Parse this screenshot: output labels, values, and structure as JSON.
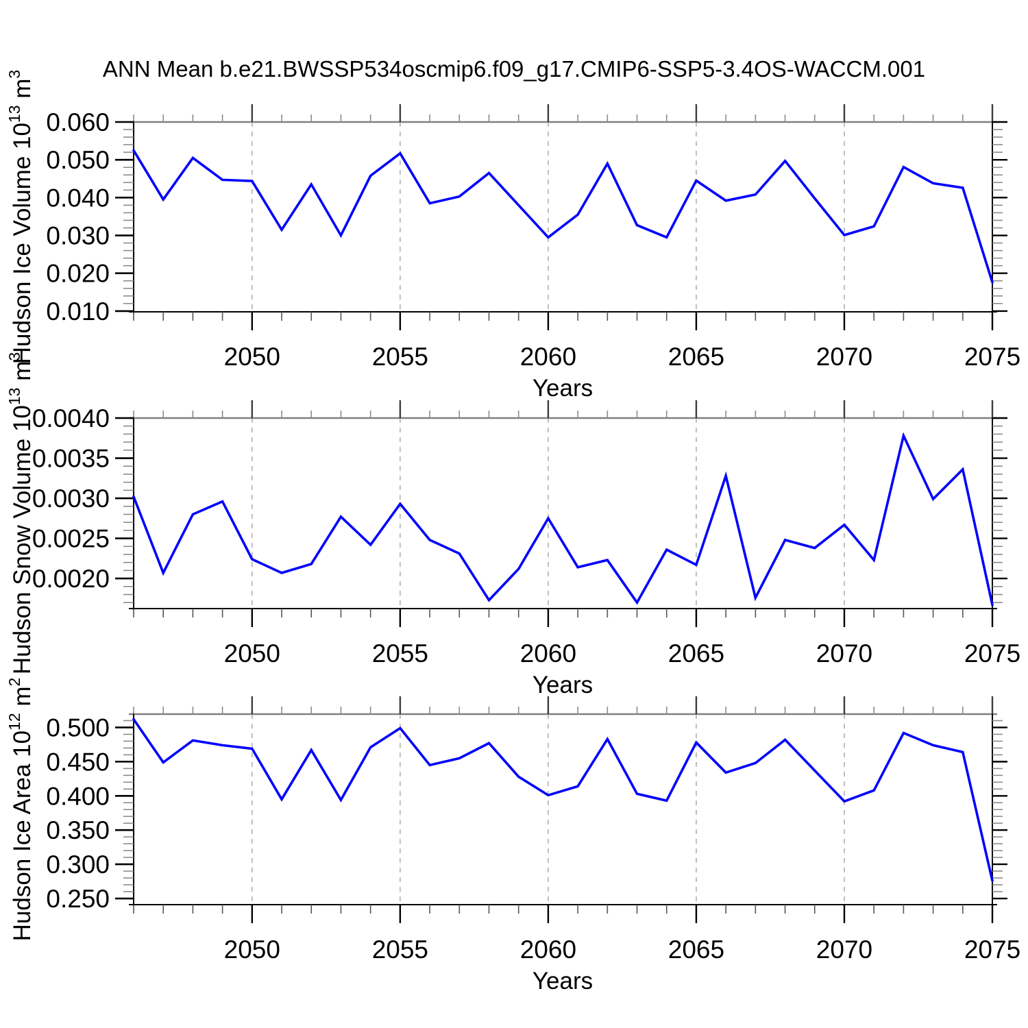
{
  "title": "ANN Mean b.e21.BWSSP534oscmip6.f09_g17.CMIP6-SSP5-3.4OS-WACCM.001",
  "colors": {
    "line": "#0000ff",
    "frame": "#000000",
    "frame_top": "#808080",
    "grid": "#b0b0b0",
    "tick_major": "#000000",
    "tick_minor": "#8c8c8c",
    "text": "#000000",
    "background": "#ffffff"
  },
  "x_axis": {
    "label": "Years",
    "start": 2046,
    "end": 2075,
    "minor_step": 1,
    "major_ticks": [
      2050,
      2055,
      2060,
      2065,
      2070,
      2075
    ],
    "major_tick_labels": [
      "2050",
      "2055",
      "2060",
      "2065",
      "2070",
      "2075"
    ],
    "grid_years": [
      2050,
      2055,
      2060,
      2065,
      2070
    ]
  },
  "chart_data": [
    {
      "type": "line",
      "name": "hudson-ice-volume",
      "ylabel_parts": {
        "main1": "Hudson Ice Volume 10",
        "sup1": "13",
        "main2": " m",
        "sup2": "3"
      },
      "xlabel": "Years",
      "legend": "none",
      "grid": "vertical-dashed",
      "x": [
        2046,
        2047,
        2048,
        2049,
        2050,
        2051,
        2052,
        2053,
        2054,
        2055,
        2056,
        2057,
        2058,
        2059,
        2060,
        2061,
        2062,
        2063,
        2064,
        2065,
        2066,
        2067,
        2068,
        2069,
        2070,
        2071,
        2072,
        2073,
        2074,
        2075
      ],
      "values": [
        0.0525,
        0.0395,
        0.0505,
        0.0447,
        0.0444,
        0.0315,
        0.0435,
        0.03,
        0.0458,
        0.0517,
        0.0385,
        0.0403,
        0.0465,
        0.038,
        0.0295,
        0.0355,
        0.049,
        0.0327,
        0.0295,
        0.0445,
        0.0392,
        0.0408,
        0.0497,
        0.0398,
        0.0301,
        0.0324,
        0.0481,
        0.0438,
        0.0426,
        0.0176
      ],
      "ylim": [
        0.0098,
        0.06
      ],
      "yticks_major": [
        0.01,
        0.02,
        0.03,
        0.04,
        0.05,
        0.06
      ],
      "ytick_labels": [
        "0.010",
        "0.020",
        "0.030",
        "0.040",
        "0.050",
        "0.060"
      ],
      "ytick_minor_step": 0.002
    },
    {
      "type": "line",
      "name": "hudson-snow-volume",
      "ylabel_parts": {
        "main1": "Hudson Snow Volume 10",
        "sup1": "13",
        "main2": " m",
        "sup2": "3"
      },
      "xlabel": "Years",
      "legend": "none",
      "grid": "vertical-dashed",
      "x": [
        2046,
        2047,
        2048,
        2049,
        2050,
        2051,
        2052,
        2053,
        2054,
        2055,
        2056,
        2057,
        2058,
        2059,
        2060,
        2061,
        2062,
        2063,
        2064,
        2065,
        2066,
        2067,
        2068,
        2069,
        2070,
        2071,
        2072,
        2073,
        2074,
        2075
      ],
      "values": [
        0.00302,
        0.00207,
        0.0028,
        0.00296,
        0.00224,
        0.00207,
        0.00218,
        0.00277,
        0.00242,
        0.00293,
        0.00248,
        0.00231,
        0.00173,
        0.00212,
        0.00275,
        0.00214,
        0.00223,
        0.0017,
        0.00236,
        0.00217,
        0.00328,
        0.00176,
        0.00248,
        0.00238,
        0.00267,
        0.00223,
        0.00378,
        0.00299,
        0.00336,
        0.00167
      ],
      "ylim": [
        0.001625,
        0.004
      ],
      "yticks_major": [
        0.002,
        0.0025,
        0.003,
        0.0035,
        0.004
      ],
      "ytick_labels": [
        "0.0020",
        "0.0025",
        "0.0030",
        "0.0035",
        "0.0040"
      ],
      "ytick_minor_step": 0.0001
    },
    {
      "type": "line",
      "name": "hudson-ice-area",
      "ylabel_parts": {
        "main1": "Hudson Ice Area 10",
        "sup1": "12",
        "main2": " m",
        "sup2": "2"
      },
      "xlabel": "Years",
      "legend": "none",
      "grid": "vertical-dashed",
      "x": [
        2046,
        2047,
        2048,
        2049,
        2050,
        2051,
        2052,
        2053,
        2054,
        2055,
        2056,
        2057,
        2058,
        2059,
        2060,
        2061,
        2062,
        2063,
        2064,
        2065,
        2066,
        2067,
        2068,
        2069,
        2070,
        2071,
        2072,
        2073,
        2074,
        2075
      ],
      "values": [
        0.512,
        0.449,
        0.481,
        0.474,
        0.469,
        0.395,
        0.467,
        0.394,
        0.471,
        0.499,
        0.445,
        0.455,
        0.477,
        0.428,
        0.401,
        0.414,
        0.483,
        0.403,
        0.393,
        0.478,
        0.434,
        0.448,
        0.482,
        0.437,
        0.392,
        0.408,
        0.492,
        0.474,
        0.464,
        0.276
      ],
      "ylim": [
        0.241,
        0.5195
      ],
      "yticks_major": [
        0.25,
        0.3,
        0.35,
        0.4,
        0.45,
        0.5
      ],
      "ytick_labels": [
        "0.250",
        "0.300",
        "0.350",
        "0.400",
        "0.450",
        "0.500"
      ],
      "ytick_minor_step": 0.01
    }
  ]
}
